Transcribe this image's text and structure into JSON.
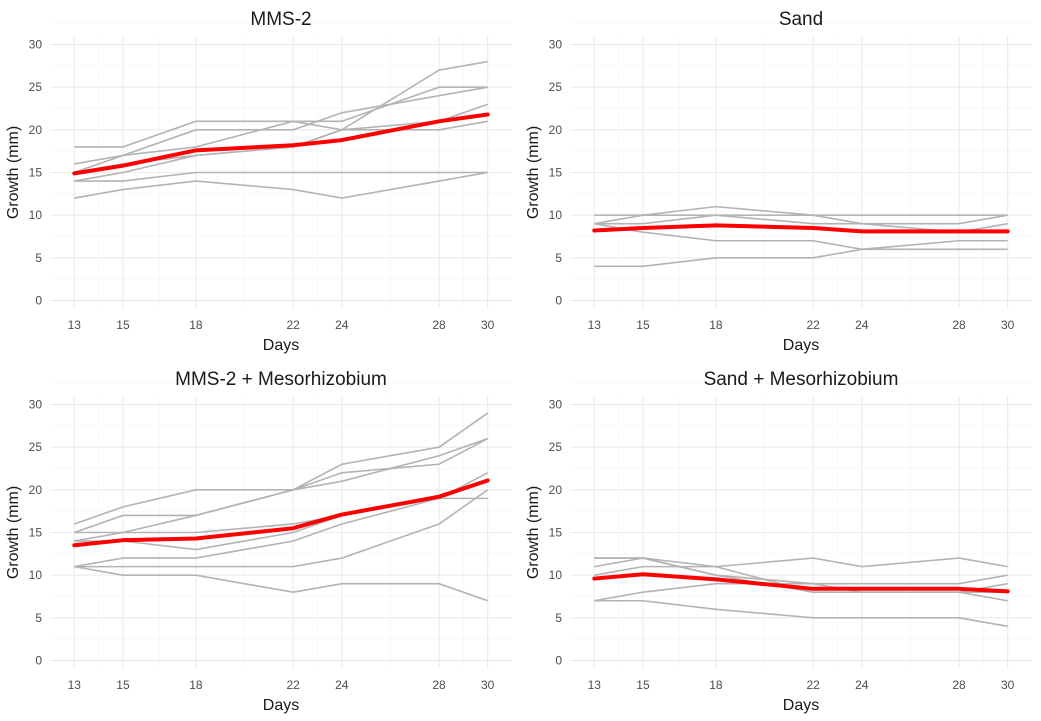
{
  "chart_data": [
    {
      "type": "line",
      "title": "MMS-2",
      "xlabel": "Days",
      "ylabel": "Growth (mm)",
      "xlim": [
        12,
        31
      ],
      "ylim": [
        -1,
        31
      ],
      "x_ticks": [
        13,
        15,
        18,
        22,
        24,
        28,
        30
      ],
      "y_ticks": [
        0,
        5,
        10,
        15,
        20,
        25,
        30
      ],
      "grid": true,
      "x": [
        13,
        15,
        18,
        22,
        24,
        28,
        30
      ],
      "series": [
        {
          "values": [
            18,
            18,
            21,
            21,
            20,
            27,
            28
          ]
        },
        {
          "values": [
            16,
            17,
            20,
            20,
            22,
            24,
            25
          ]
        },
        {
          "values": [
            15,
            17,
            18,
            21,
            21,
            25,
            25
          ]
        },
        {
          "values": [
            15,
            16,
            17,
            18,
            20,
            21,
            23
          ]
        },
        {
          "values": [
            14,
            15,
            17,
            18,
            20,
            20,
            21
          ]
        },
        {
          "values": [
            14,
            14,
            15,
            15,
            15,
            15,
            15
          ]
        },
        {
          "values": [
            12,
            13,
            14,
            13,
            12,
            14,
            15
          ]
        },
        {
          "values": [
            14.9,
            15.8,
            17.6,
            18.2,
            18.8,
            21.0,
            21.8
          ],
          "highlight": true
        }
      ]
    },
    {
      "type": "line",
      "title": "Sand",
      "xlabel": "Days",
      "ylabel": "Growth (mm)",
      "xlim": [
        12,
        31
      ],
      "ylim": [
        -1,
        31
      ],
      "x_ticks": [
        13,
        15,
        18,
        22,
        24,
        28,
        30
      ],
      "y_ticks": [
        0,
        5,
        10,
        15,
        20,
        25,
        30
      ],
      "grid": true,
      "x": [
        13,
        15,
        18,
        22,
        24,
        28,
        30
      ],
      "series": [
        {
          "values": [
            10,
            10,
            10,
            10,
            10,
            10,
            10
          ]
        },
        {
          "values": [
            9,
            10,
            11,
            10,
            9,
            9,
            10
          ]
        },
        {
          "values": [
            9,
            9,
            10,
            9,
            9,
            8,
            9
          ]
        },
        {
          "values": [
            9,
            8,
            7,
            7,
            6,
            7,
            7
          ]
        },
        {
          "values": [
            4,
            4,
            5,
            5,
            6,
            6,
            6
          ]
        },
        {
          "values": [
            8.2,
            8.5,
            8.8,
            8.5,
            8.1,
            8.1,
            8.1
          ],
          "highlight": true
        }
      ]
    },
    {
      "type": "line",
      "title": "MMS-2 + Mesorhizobium",
      "xlabel": "Days",
      "ylabel": "Growth (mm)",
      "xlim": [
        12,
        31
      ],
      "ylim": [
        -1,
        31
      ],
      "x_ticks": [
        13,
        15,
        18,
        22,
        24,
        28,
        30
      ],
      "y_ticks": [
        0,
        5,
        10,
        15,
        20,
        25,
        30
      ],
      "grid": true,
      "x": [
        13,
        15,
        18,
        22,
        24,
        28,
        30
      ],
      "series": [
        {
          "values": [
            16,
            18,
            20,
            20,
            23,
            25,
            29
          ]
        },
        {
          "values": [
            15,
            17,
            17,
            20,
            21,
            24,
            26
          ]
        },
        {
          "values": [
            14,
            15,
            17,
            20,
            22,
            23,
            26
          ]
        },
        {
          "values": [
            15,
            15,
            15,
            16,
            17,
            19,
            22
          ]
        },
        {
          "values": [
            14,
            14,
            13,
            15,
            17,
            19,
            21
          ]
        },
        {
          "values": [
            11,
            12,
            12,
            14,
            16,
            19,
            19
          ]
        },
        {
          "values": [
            11,
            11,
            11,
            11,
            12,
            16,
            20
          ]
        },
        {
          "values": [
            11,
            10,
            10,
            8,
            9,
            9,
            7
          ]
        },
        {
          "values": [
            13.5,
            14.1,
            14.3,
            15.5,
            17.1,
            19.2,
            21.1
          ],
          "highlight": true
        }
      ]
    },
    {
      "type": "line",
      "title": "Sand + Mesorhizobium",
      "xlabel": "Days",
      "ylabel": "Growth (mm)",
      "xlim": [
        12,
        31
      ],
      "ylim": [
        -1,
        31
      ],
      "x_ticks": [
        13,
        15,
        18,
        22,
        24,
        28,
        30
      ],
      "y_ticks": [
        0,
        5,
        10,
        15,
        20,
        25,
        30
      ],
      "grid": true,
      "x": [
        13,
        15,
        18,
        22,
        24,
        28,
        30
      ],
      "series": [
        {
          "values": [
            12,
            12,
            11,
            12,
            11,
            12,
            11
          ]
        },
        {
          "values": [
            12,
            12,
            10,
            9,
            9,
            9,
            10
          ]
        },
        {
          "values": [
            11,
            12,
            10,
            8,
            8,
            8,
            8
          ]
        },
        {
          "values": [
            7,
            8,
            9,
            9,
            8,
            8,
            7
          ]
        },
        {
          "values": [
            7,
            7,
            6,
            5,
            5,
            5,
            4
          ]
        },
        {
          "values": [
            10,
            11,
            11,
            8,
            8,
            8,
            9
          ]
        },
        {
          "values": [
            9.6,
            10.1,
            9.5,
            8.4,
            8.4,
            8.4,
            8.1
          ],
          "highlight": true
        }
      ]
    }
  ]
}
